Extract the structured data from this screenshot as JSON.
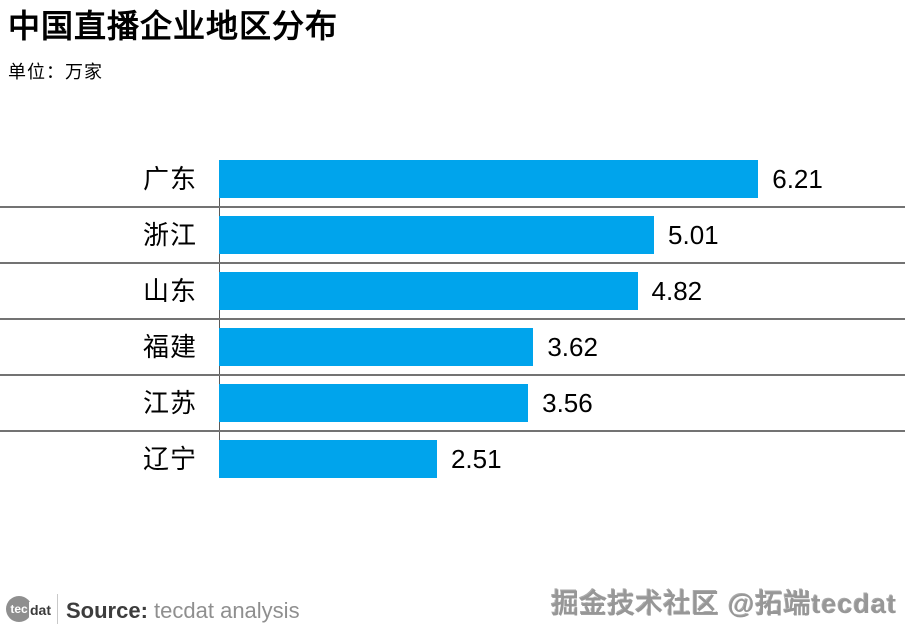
{
  "chart_data": {
    "type": "bar",
    "orientation": "horizontal",
    "title": "中国直播企业地区分布",
    "unit_label": "单位：万家",
    "categories": [
      "广东",
      "浙江",
      "山东",
      "福建",
      "江苏",
      "辽宁"
    ],
    "values": [
      6.21,
      5.01,
      4.82,
      3.62,
      3.56,
      2.51
    ],
    "value_labels": [
      "6.21",
      "5.01",
      "4.82",
      "3.62",
      "3.56",
      "2.51"
    ],
    "xlabel": "",
    "ylabel": "",
    "xlim": [
      0,
      7.9
    ],
    "legend": "none",
    "grid": "horizontal-row-separators",
    "bar_color": "#00A4EC",
    "separator_color": "#737373",
    "axis_line_color": "#595959",
    "value_label_color": "#000000",
    "category_label_color": "#000000"
  },
  "footer": {
    "logo_circle_text": "tec",
    "logo_suffix": "dat",
    "source_label": "Source:",
    "source_value": "tecdat analysis"
  },
  "watermark": "掘金技术社区 @拓端tecdat"
}
